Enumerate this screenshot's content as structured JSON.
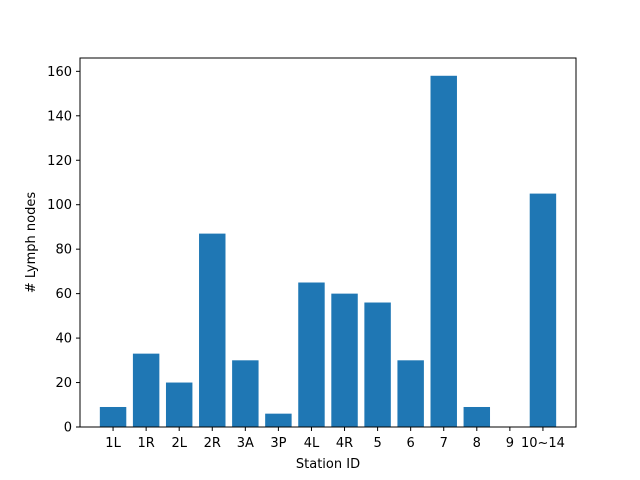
{
  "chart_data": {
    "type": "bar",
    "title": "",
    "xlabel": "Station ID",
    "ylabel": "# Lymph nodes",
    "categories": [
      "1L",
      "1R",
      "2L",
      "2R",
      "3A",
      "3P",
      "4L",
      "4R",
      "5",
      "6",
      "7",
      "8",
      "9",
      "10~14"
    ],
    "values": [
      9,
      33,
      20,
      87,
      30,
      6,
      65,
      60,
      56,
      30,
      158,
      9,
      0,
      105
    ],
    "ylim": [
      0,
      166
    ],
    "yticks": [
      0,
      20,
      40,
      60,
      80,
      100,
      120,
      140,
      160
    ],
    "bar_color": "#1f77b4",
    "grid": false,
    "legend": "none"
  }
}
